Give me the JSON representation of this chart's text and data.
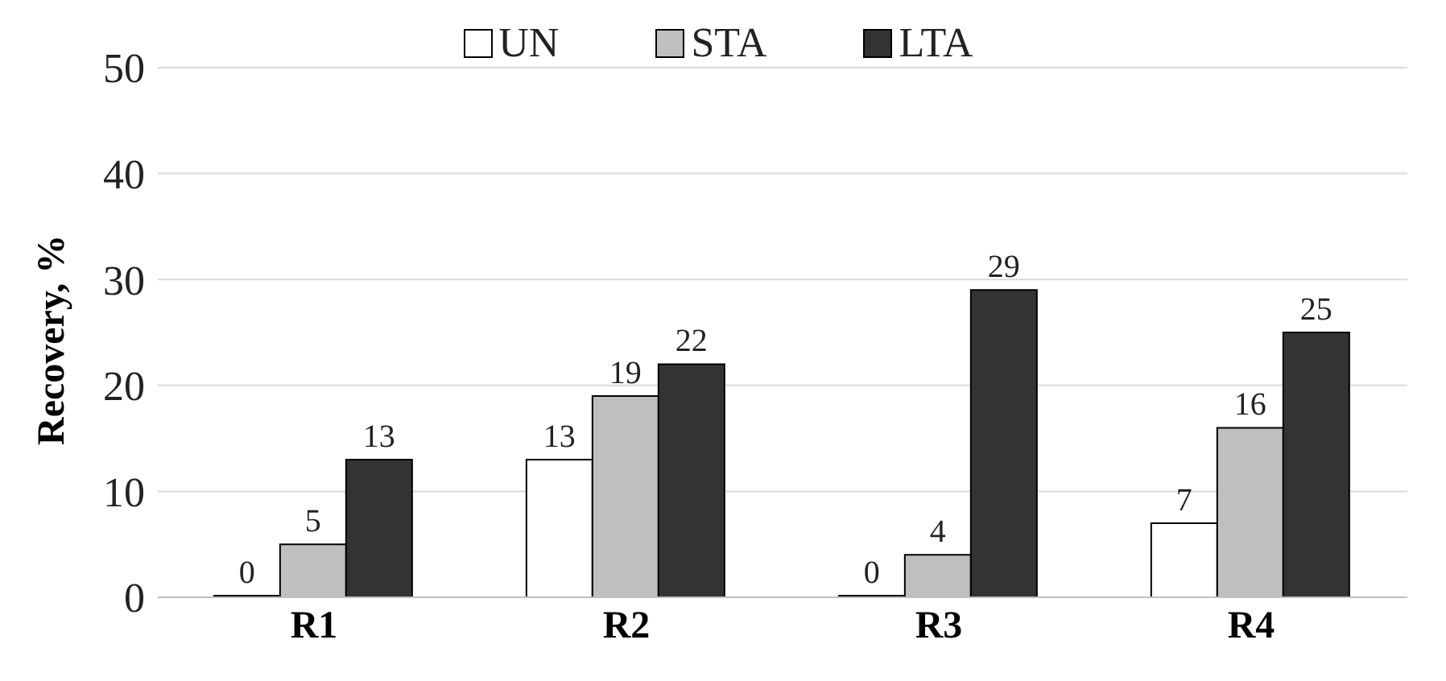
{
  "chart_data": {
    "type": "bar",
    "ylabel": "Recovery, %",
    "categories": [
      "R1",
      "R2",
      "R3",
      "R4"
    ],
    "series": [
      {
        "name": "UN",
        "color": "#ffffff",
        "values": [
          0,
          13,
          0,
          7
        ]
      },
      {
        "name": "STA",
        "color": "#bfbfbf",
        "values": [
          5,
          19,
          4,
          16
        ]
      },
      {
        "name": "LTA",
        "color": "#333333",
        "values": [
          13,
          22,
          29,
          25
        ]
      }
    ],
    "ylim": [
      0,
      50
    ],
    "yticks": [
      0,
      10,
      20,
      30,
      40,
      50
    ],
    "grid": "y",
    "legend": "top",
    "data_labels": true
  }
}
